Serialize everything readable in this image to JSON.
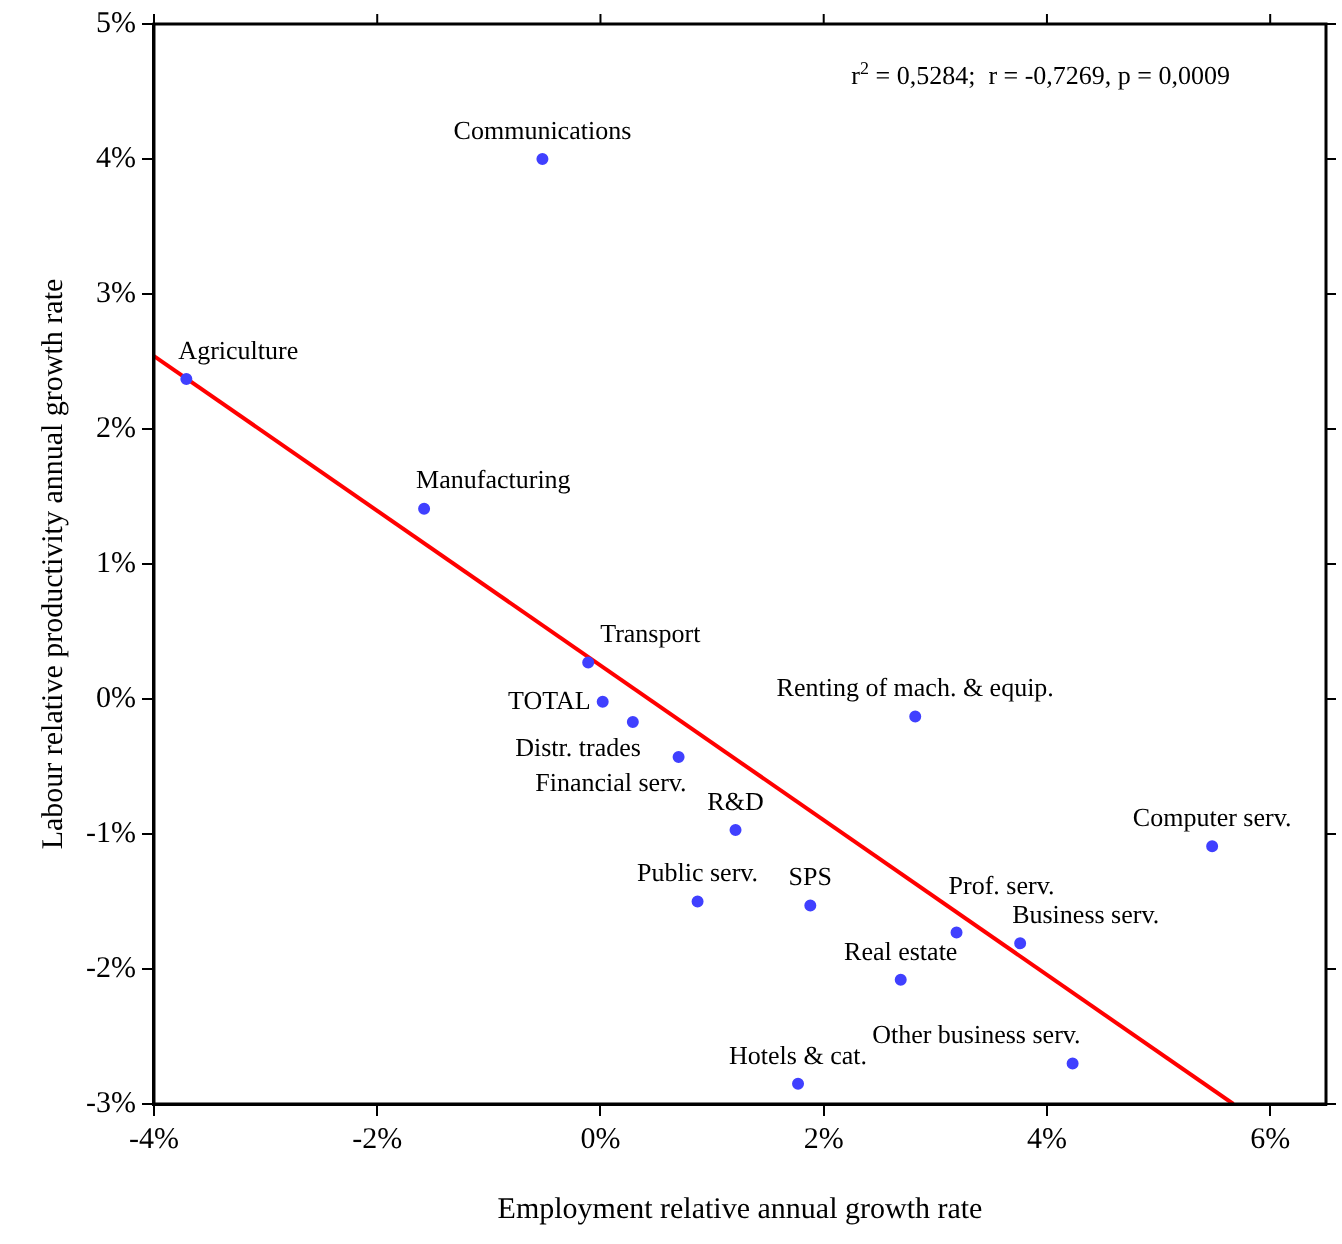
{
  "chart_data": {
    "type": "scatter",
    "xlabel": "Employment relative annual growth rate",
    "ylabel": "Labour relative productivity annual growth rate",
    "xlim": [
      -4,
      6.5
    ],
    "ylim": [
      -3,
      5
    ],
    "xticks": [
      {
        "value": -4,
        "label": "-4%"
      },
      {
        "value": -2,
        "label": "-2%"
      },
      {
        "value": 0,
        "label": "0%"
      },
      {
        "value": 2,
        "label": "2%"
      },
      {
        "value": 4,
        "label": "4%"
      },
      {
        "value": 6,
        "label": "6%"
      }
    ],
    "yticks": [
      {
        "value": -3,
        "label": "-3%"
      },
      {
        "value": -2,
        "label": "-2%"
      },
      {
        "value": -1,
        "label": "-1%"
      },
      {
        "value": 0,
        "label": "0%"
      },
      {
        "value": 1,
        "label": "1%"
      },
      {
        "value": 2,
        "label": "2%"
      },
      {
        "value": 3,
        "label": "3%"
      },
      {
        "value": 4,
        "label": "4%"
      },
      {
        "value": 5,
        "label": "5%"
      }
    ],
    "grid": false,
    "legend": false,
    "marker": "circle",
    "series": [
      {
        "type": "scatter",
        "color": "#4040ff",
        "x": [
          -0.52,
          -3.71,
          -1.58,
          -0.11,
          0.02,
          0.29,
          0.7,
          1.21,
          0.87,
          1.88,
          1.77,
          2.69,
          2.82,
          3.19,
          3.76,
          4.23,
          5.48
        ],
        "values": [
          4.0,
          2.37,
          1.41,
          0.27,
          -0.02,
          -0.17,
          -0.43,
          -0.97,
          -1.5,
          -1.53,
          -2.85,
          -2.08,
          -0.13,
          -1.73,
          -1.81,
          -2.7,
          -1.09
        ]
      },
      {
        "type": "line",
        "color": "#ff0000",
        "marker": "none",
        "line_style": "solid",
        "x": [
          -4,
          5.67
        ],
        "values": [
          2.54,
          -3
        ]
      }
    ],
    "annotations": [
      "r$^{2}$ = 0,5284;  r = -0,7269, p = 0,0009",
      {
        "text": "Communications",
        "x": -0.52,
        "y": 4.0
      },
      {
        "text": "Agriculture",
        "x": -3.71,
        "y": 2.37
      },
      {
        "text": "Manufacturing",
        "x": -1.58,
        "y": 1.41
      },
      {
        "text": "Transport",
        "x": -0.11,
        "y": 0.27
      },
      {
        "text": "TOTAL",
        "x": 0.02,
        "y": -0.02
      },
      {
        "text": "Distr. trades",
        "x": 0.29,
        "y": -0.17
      },
      {
        "text": "Financial serv.",
        "x": 0.7,
        "y": -0.43
      },
      {
        "text": "R&D",
        "x": 1.21,
        "y": -0.97
      },
      {
        "text": "Public serv.",
        "x": 0.87,
        "y": -1.5
      },
      {
        "text": "SPS",
        "x": 1.88,
        "y": -1.53
      },
      {
        "text": "Hotels & cat.",
        "x": 1.77,
        "y": -2.85
      },
      {
        "text": "Real estate",
        "x": 2.69,
        "y": -2.08
      },
      {
        "text": "Renting of mach. & equip.",
        "x": 2.82,
        "y": -0.13
      },
      {
        "text": "Prof. serv.",
        "x": 3.19,
        "y": -1.73
      },
      {
        "text": "Business serv.",
        "x": 3.76,
        "y": -1.81
      },
      {
        "text": "Other business serv.",
        "x": 4.23,
        "y": -2.7
      },
      {
        "text": "Computer serv.",
        "x": 5.48,
        "y": -1.09
      }
    ]
  }
}
